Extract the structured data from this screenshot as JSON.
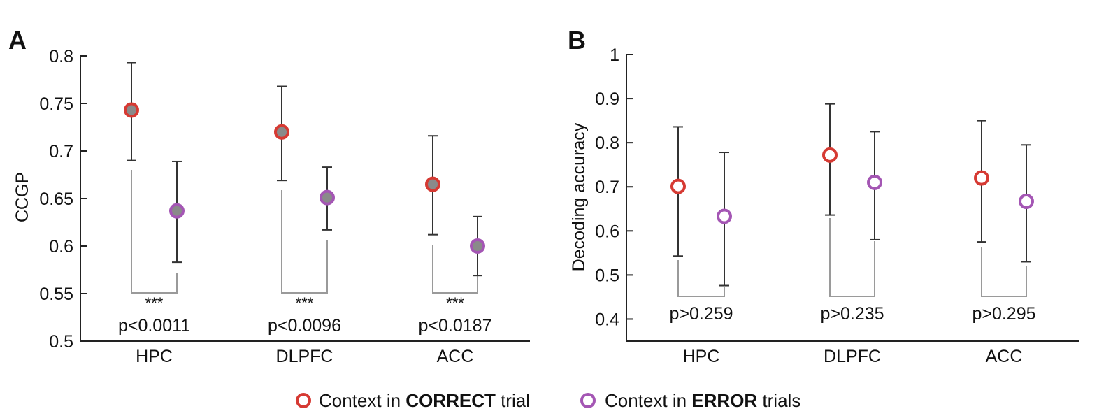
{
  "colors": {
    "correct": "#d63a33",
    "error": "#a456b4",
    "marker_fill_a": "#8a8a8a",
    "errorbar": "#333333",
    "bracket": "#9a9a9a"
  },
  "chart_data": [
    {
      "panel": "A",
      "type": "scatter",
      "ylabel": "CCGP",
      "ylim": [
        0.5,
        0.8
      ],
      "yticks": [
        0.5,
        0.55,
        0.6,
        0.65,
        0.7,
        0.75,
        0.8
      ],
      "ytick_labels": [
        "0.5",
        "0.55",
        "0.6",
        "0.65",
        "0.7",
        "0.75",
        "0.8"
      ],
      "categories": [
        "HPC",
        "DLPFC",
        "ACC"
      ],
      "series": [
        {
          "key": "correct",
          "values": [
            0.743,
            0.72,
            0.665
          ],
          "err_low": [
            0.69,
            0.669,
            0.612
          ],
          "err_high": [
            0.793,
            0.768,
            0.716
          ]
        },
        {
          "key": "error",
          "values": [
            0.637,
            0.651,
            0.6
          ],
          "err_low": [
            0.583,
            0.617,
            0.569
          ],
          "err_high": [
            0.689,
            0.683,
            0.631
          ]
        }
      ],
      "significance": [
        "***",
        "***",
        "***"
      ],
      "pvalues": [
        "p<0.0011",
        "p<0.0096",
        "p<0.0187"
      ]
    },
    {
      "panel": "B",
      "type": "scatter",
      "ylabel": "Decoding accuracy",
      "ylim": [
        0.35,
        1.0
      ],
      "yticks": [
        0.4,
        0.5,
        0.6,
        0.7,
        0.8,
        0.9,
        1.0
      ],
      "ytick_labels": [
        "0.4",
        "0.5",
        "0.6",
        "0.7",
        "0.8",
        "0.9",
        "1"
      ],
      "categories": [
        "HPC",
        "DLPFC",
        "ACC"
      ],
      "series": [
        {
          "key": "correct",
          "values": [
            0.701,
            0.772,
            0.72
          ],
          "err_low": [
            0.543,
            0.636,
            0.575
          ],
          "err_high": [
            0.836,
            0.888,
            0.85
          ]
        },
        {
          "key": "error",
          "values": [
            0.633,
            0.71,
            0.667
          ],
          "err_low": [
            0.476,
            0.58,
            0.53
          ],
          "err_high": [
            0.778,
            0.825,
            0.795
          ]
        }
      ],
      "pvalues": [
        "p>0.259",
        "p>0.235",
        "p>0.295"
      ]
    }
  ],
  "legend": {
    "correct": {
      "prefix": "Context in ",
      "strong": "CORRECT",
      "suffix": " trial"
    },
    "error": {
      "prefix": "Context in ",
      "strong": "ERROR",
      "suffix": " trials"
    }
  }
}
